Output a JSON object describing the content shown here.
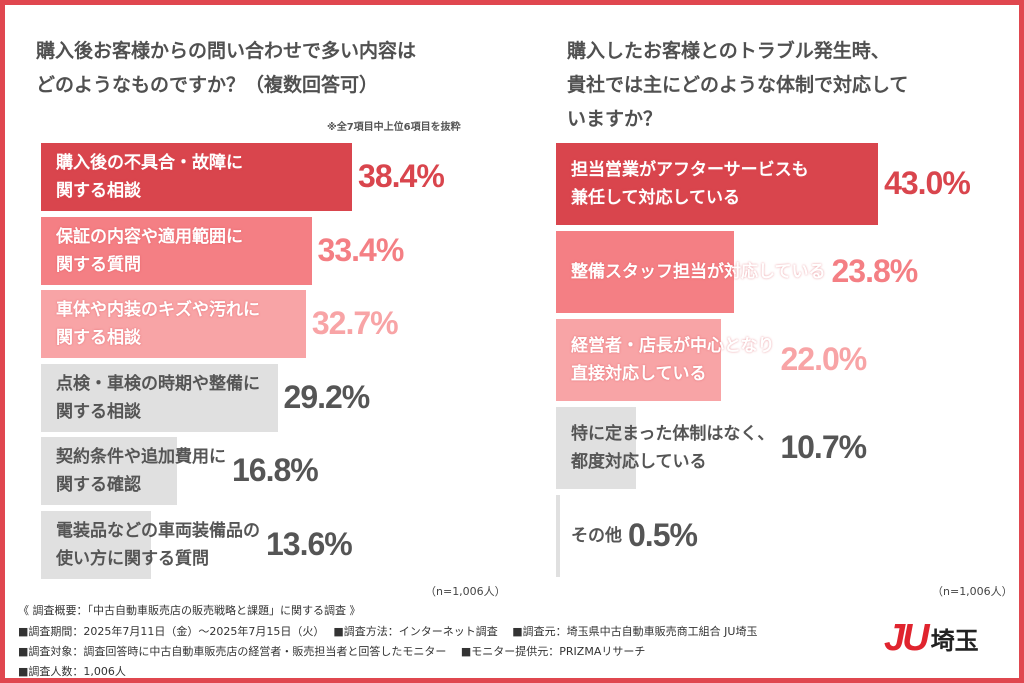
{
  "colors": {
    "frame": "#e0474f",
    "top": "#d9454d",
    "second": "#f47f84",
    "third": "#f8a4a6",
    "other": "#e0e0e0"
  },
  "chart_data": [
    {
      "type": "bar",
      "orientation": "horizontal",
      "title": "購入後お客様からの問い合わせで多い内容は\nどのようなものですか？（複数回答可）",
      "note": "※全7項目中上位6項目を抜粋",
      "n": "（n=1,006人）",
      "unit": "%",
      "categories": [
        "購入後の不具合・故障に\n関する相談",
        "保証の内容や適用範囲に\n関する質問",
        "車体や内装のキズや汚れに\n関する相談",
        "点検・車検の時期や整備に\n関する相談",
        "契約条件や追加費用に\n関する確認",
        "電装品などの車両装備品の\n使い方に関する質問"
      ],
      "values": [
        38.4,
        33.4,
        32.7,
        29.2,
        16.8,
        13.6
      ],
      "labels": [
        "38.4%",
        "33.4%",
        "32.7%",
        "29.2%",
        "16.8%",
        "13.6%"
      ]
    },
    {
      "type": "bar",
      "orientation": "horizontal",
      "title": "購入したお客様とのトラブル発生時、\n貴社では主にどのような体制で対応して\nいますか？",
      "n": "（n=1,006人）",
      "unit": "%",
      "categories": [
        "担当営業がアフターサービスも\n兼任して対応している",
        "整備スタッフ担当が対応している",
        "経営者・店長が中心となり\n直接対応している",
        "特に定まった体制はなく、\n都度対応している",
        "その他"
      ],
      "values": [
        43.0,
        23.8,
        22.0,
        10.7,
        0.5
      ],
      "labels": [
        "43.0%",
        "23.8%",
        "22.0%",
        "10.7%",
        "0.5%"
      ]
    }
  ],
  "footer": {
    "heading": "《 調査概要：「中古自動車販売店の販売戦略と課題」に関する調査 》",
    "line1": "■調査期間：2025年7月11日（金）〜2025年7月15日（火）　 ■調査方法：インターネット調査　 ■調査元：埼玉県中古自動車販売商工組合 JU埼玉",
    "line2": "■調査対象：調査回答時に中古自動車販売店の経営者・販売担当者と回答したモニター　 ■モニター提供元：PRIZMAリサーチ",
    "line3": "■調査人数：1,006人"
  },
  "logo": {
    "mark": "JU",
    "text": "埼玉"
  }
}
